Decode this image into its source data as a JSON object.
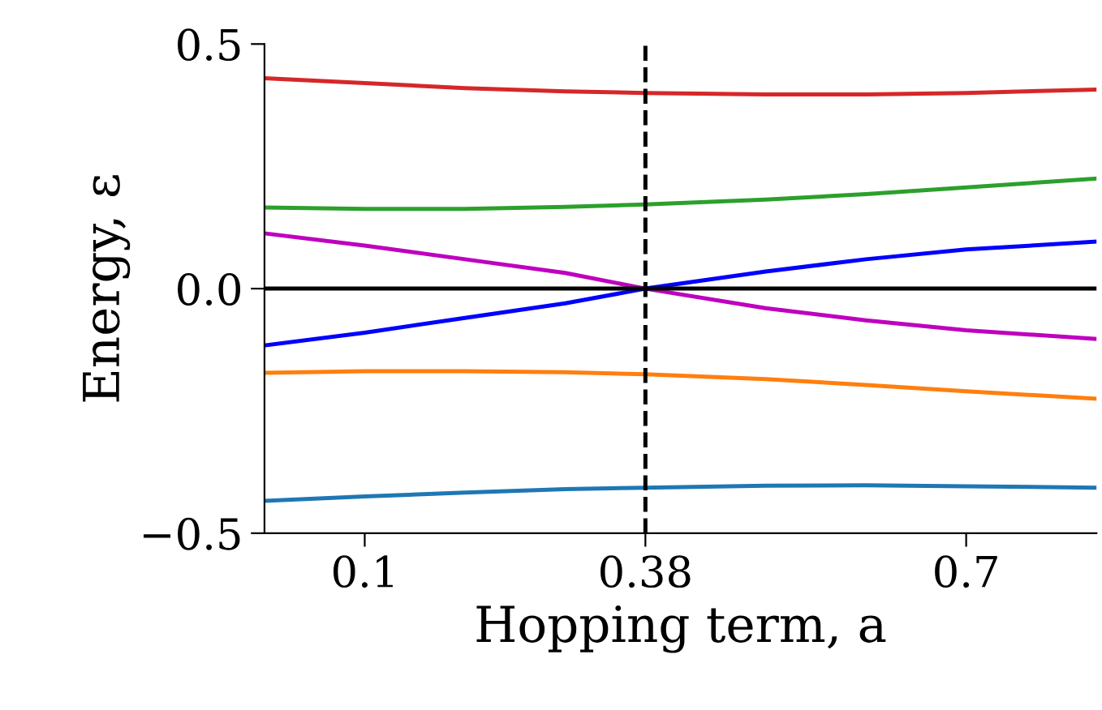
{
  "chart_data": {
    "type": "line",
    "xlabel": "Hopping term, a",
    "ylabel": "Energy, ε",
    "x": [
      0,
      0.1,
      0.2,
      0.3,
      0.38,
      0.5,
      0.6,
      0.7,
      0.83
    ],
    "series": [
      {
        "color": "#d62728",
        "values": [
          0.43,
          0.42,
          0.41,
          0.403,
          0.4,
          0.397,
          0.397,
          0.4,
          0.407
        ]
      },
      {
        "color": "#2ca02c",
        "values": [
          0.166,
          0.163,
          0.163,
          0.167,
          0.172,
          0.182,
          0.193,
          0.207,
          0.225
        ]
      },
      {
        "color": "#bf00bf",
        "values": [
          0.113,
          0.088,
          0.06,
          0.032,
          0.0,
          -0.04,
          -0.065,
          -0.085,
          -0.103
        ]
      },
      {
        "color": "#0000ff",
        "values": [
          -0.116,
          -0.09,
          -0.06,
          -0.03,
          0.0,
          0.035,
          0.06,
          0.08,
          0.096
        ]
      },
      {
        "color": "#ff7f0e",
        "values": [
          -0.172,
          -0.169,
          -0.169,
          -0.171,
          -0.175,
          -0.185,
          -0.197,
          -0.21,
          -0.225
        ]
      },
      {
        "color": "#1f77b4",
        "values": [
          -0.434,
          -0.425,
          -0.417,
          -0.41,
          -0.407,
          -0.403,
          -0.402,
          -0.404,
          -0.407
        ]
      }
    ],
    "xlim": [
      0,
      0.83
    ],
    "xticks": [
      0.1,
      0.38,
      0.7
    ],
    "ylim": [
      -0.5,
      0.5
    ],
    "yticks": [
      0.5,
      {
        "value": 0.0,
        "label": "0.0"
      },
      {
        "value": -0.5,
        "label": "−0.5"
      }
    ],
    "ref_lines": [
      {
        "axis": "y",
        "value": 0,
        "color": "#000000",
        "line_style": "solid"
      },
      {
        "axis": "x",
        "value": 0.38,
        "color": "#000000",
        "line_style": "dashed"
      }
    ],
    "grid": false,
    "legend": false
  }
}
